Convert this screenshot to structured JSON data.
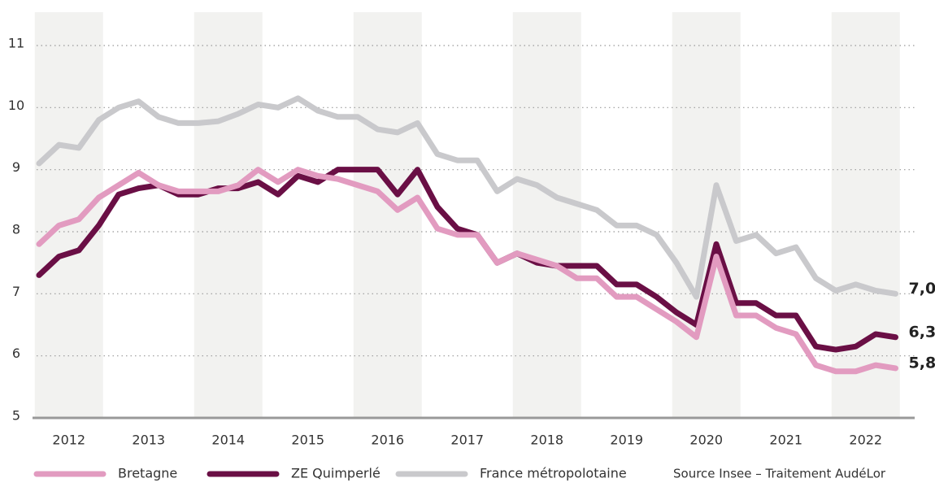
{
  "chart_data": {
    "type": "line",
    "categories": [
      "2012",
      null,
      null,
      null,
      "2013",
      null,
      null,
      null,
      "2014",
      null,
      null,
      null,
      "2015",
      null,
      null,
      null,
      "2016",
      null,
      null,
      null,
      "2017",
      null,
      null,
      null,
      "2018",
      null,
      null,
      null,
      "2019",
      null,
      null,
      null,
      "2020",
      null,
      null,
      null,
      "2021",
      null,
      null,
      null,
      "2022",
      null,
      null,
      null
    ],
    "ylim": [
      5,
      11
    ],
    "yticks": [
      5,
      6,
      7,
      8,
      9,
      10,
      11
    ],
    "grid": true,
    "legend": "bottom",
    "source": "Source Insee – Traitement AudéLor",
    "series": [
      {
        "name": "Bretagne",
        "color": "#e29bc0",
        "values": [
          7.8,
          8.1,
          8.2,
          8.55,
          8.75,
          8.95,
          8.75,
          8.65,
          8.65,
          8.65,
          8.75,
          9.0,
          8.8,
          9.0,
          8.9,
          8.85,
          8.75,
          8.65,
          8.35,
          8.55,
          8.05,
          7.95,
          7.95,
          7.5,
          7.65,
          7.55,
          7.45,
          7.25,
          7.25,
          6.95,
          6.95,
          6.75,
          6.55,
          6.3,
          7.6,
          6.65,
          6.65,
          6.45,
          6.35,
          5.85,
          5.75,
          5.75,
          5.85,
          5.8
        ],
        "value_labels": [
          null,
          null,
          null,
          null,
          null,
          null,
          null,
          null,
          null,
          null,
          null,
          null,
          null,
          null,
          null,
          null,
          null,
          null,
          null,
          null,
          null,
          null,
          null,
          null,
          null,
          null,
          null,
          null,
          null,
          null,
          null,
          null,
          null,
          null,
          null,
          null,
          null,
          null,
          null,
          null,
          null,
          null,
          null,
          "5,8"
        ]
      },
      {
        "name": "ZE Quimperlé",
        "color": "#6a0f45",
        "values": [
          7.3,
          7.6,
          7.7,
          8.1,
          8.6,
          8.7,
          8.75,
          8.6,
          8.6,
          8.7,
          8.7,
          8.8,
          8.6,
          8.9,
          8.8,
          9.0,
          9.0,
          9.0,
          8.6,
          9.0,
          8.4,
          8.05,
          7.95,
          7.5,
          7.65,
          7.5,
          7.45,
          7.45,
          7.45,
          7.15,
          7.15,
          6.95,
          6.7,
          6.5,
          7.8,
          6.85,
          6.85,
          6.65,
          6.65,
          6.15,
          6.1,
          6.15,
          6.35,
          6.3
        ],
        "value_labels": [
          null,
          null,
          null,
          null,
          null,
          null,
          null,
          null,
          null,
          null,
          null,
          null,
          null,
          null,
          null,
          null,
          null,
          null,
          null,
          null,
          null,
          null,
          null,
          null,
          null,
          null,
          null,
          null,
          null,
          null,
          null,
          null,
          null,
          null,
          null,
          null,
          null,
          null,
          null,
          null,
          null,
          null,
          null,
          "6,3"
        ]
      },
      {
        "name": "France métropolotaine",
        "color": "#c9c9cc",
        "values": [
          9.1,
          9.4,
          9.35,
          9.8,
          10.0,
          10.1,
          9.85,
          9.75,
          9.75,
          9.78,
          9.9,
          10.05,
          10.0,
          10.15,
          9.95,
          9.85,
          9.85,
          9.65,
          9.6,
          9.75,
          9.25,
          9.15,
          9.15,
          8.65,
          8.85,
          8.75,
          8.55,
          8.45,
          8.35,
          8.1,
          8.1,
          7.95,
          7.5,
          6.95,
          8.75,
          7.85,
          7.95,
          7.65,
          7.75,
          7.25,
          7.05,
          7.15,
          7.05,
          7.0
        ],
        "value_labels": [
          null,
          null,
          null,
          null,
          null,
          null,
          null,
          null,
          null,
          null,
          null,
          null,
          null,
          null,
          null,
          null,
          null,
          null,
          null,
          null,
          null,
          null,
          null,
          null,
          null,
          null,
          null,
          null,
          null,
          null,
          null,
          null,
          null,
          null,
          null,
          null,
          null,
          null,
          null,
          null,
          null,
          null,
          null,
          "7,0"
        ]
      }
    ]
  }
}
